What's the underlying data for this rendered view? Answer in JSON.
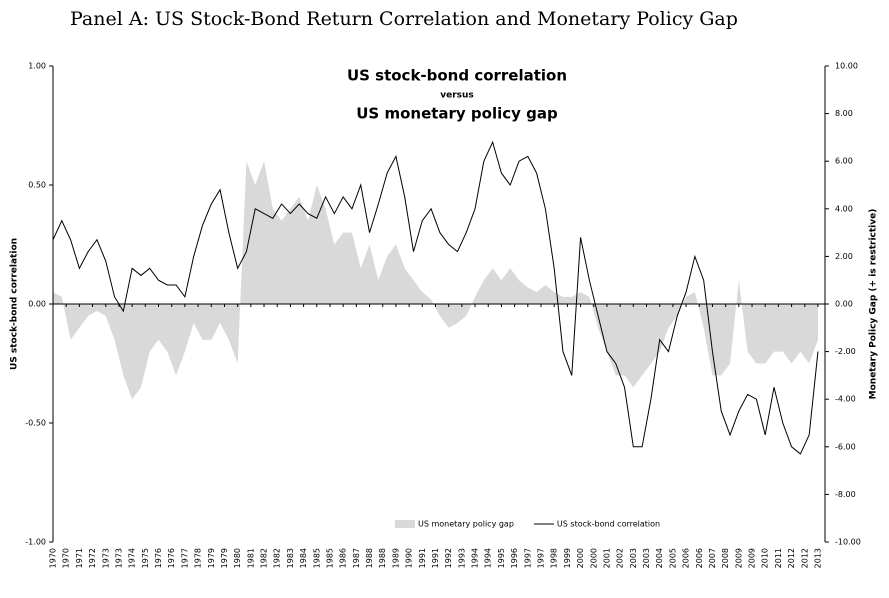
{
  "chart_data": {
    "type": "line",
    "title": "Panel A: US Stock-Bond Return Correlation and Monetary Policy Gap",
    "annotations": [
      "US stock-bond correlation",
      "versus",
      "US monetary policy gap"
    ],
    "y_label": "US stock-bond correlation",
    "y2_label": "Monetary Policy Gap (+ is restrictive)",
    "legend": "bottom",
    "xlim": [
      1970,
      2013.9
    ],
    "ylim": [
      -1,
      1
    ],
    "y2lim": [
      -10,
      10
    ],
    "yticks": [
      {
        "value": 1,
        "label": "1.00"
      },
      {
        "value": 0.5,
        "label": "0.50"
      },
      {
        "value": 0,
        "label": "0.00"
      },
      {
        "value": -0.5,
        "label": "-0.50"
      },
      {
        "value": -1,
        "label": "-1.00"
      }
    ],
    "y2ticks": [
      {
        "value": 10,
        "label": "10.00"
      },
      {
        "value": 8,
        "label": "8.00"
      },
      {
        "value": 6,
        "label": "6.00"
      },
      {
        "value": 4,
        "label": "4.00"
      },
      {
        "value": 2,
        "label": "2.00"
      },
      {
        "value": 0,
        "label": "0.00"
      },
      {
        "value": -2,
        "label": "-2.00"
      },
      {
        "value": -4,
        "label": "-4.00"
      },
      {
        "value": -6,
        "label": "-6.00"
      },
      {
        "value": -8,
        "label": "-8.00"
      },
      {
        "value": -10,
        "label": "-10.00"
      }
    ],
    "xticks": [
      {
        "value": 1970.0,
        "label": "1970"
      },
      {
        "value": 1970.75,
        "label": "1970"
      },
      {
        "value": 1971.5,
        "label": "1971"
      },
      {
        "value": 1972.25,
        "label": "1972"
      },
      {
        "value": 1973.0,
        "label": "1973"
      },
      {
        "value": 1973.75,
        "label": "1973"
      },
      {
        "value": 1974.5,
        "label": "1974"
      },
      {
        "value": 1975.25,
        "label": "1975"
      },
      {
        "value": 1976.0,
        "label": "1976"
      },
      {
        "value": 1976.75,
        "label": "1976"
      },
      {
        "value": 1977.5,
        "label": "1977"
      },
      {
        "value": 1978.25,
        "label": "1978"
      },
      {
        "value": 1979.0,
        "label": "1979"
      },
      {
        "value": 1979.75,
        "label": "1979"
      },
      {
        "value": 1980.5,
        "label": "1980"
      },
      {
        "value": 1981.25,
        "label": "1981"
      },
      {
        "value": 1982.0,
        "label": "1982"
      },
      {
        "value": 1982.75,
        "label": "1982"
      },
      {
        "value": 1983.5,
        "label": "1983"
      },
      {
        "value": 1984.25,
        "label": "1984"
      },
      {
        "value": 1985.0,
        "label": "1985"
      },
      {
        "value": 1985.75,
        "label": "1985"
      },
      {
        "value": 1986.5,
        "label": "1986"
      },
      {
        "value": 1987.25,
        "label": "1987"
      },
      {
        "value": 1988.0,
        "label": "1988"
      },
      {
        "value": 1988.75,
        "label": "1988"
      },
      {
        "value": 1989.5,
        "label": "1989"
      },
      {
        "value": 1990.25,
        "label": "1990"
      },
      {
        "value": 1991.0,
        "label": "1991"
      },
      {
        "value": 1991.75,
        "label": "1991"
      },
      {
        "value": 1992.5,
        "label": "1992"
      },
      {
        "value": 1993.25,
        "label": "1993"
      },
      {
        "value": 1994.0,
        "label": "1994"
      },
      {
        "value": 1994.75,
        "label": "1994"
      },
      {
        "value": 1995.5,
        "label": "1995"
      },
      {
        "value": 1996.25,
        "label": "1996"
      },
      {
        "value": 1997.0,
        "label": "1997"
      },
      {
        "value": 1997.75,
        "label": "1997"
      },
      {
        "value": 1998.5,
        "label": "1998"
      },
      {
        "value": 1999.25,
        "label": "1999"
      },
      {
        "value": 2000.0,
        "label": "2000"
      },
      {
        "value": 2000.75,
        "label": "2000"
      },
      {
        "value": 2001.5,
        "label": "2001"
      },
      {
        "value": 2002.25,
        "label": "2002"
      },
      {
        "value": 2003.0,
        "label": "2003"
      },
      {
        "value": 2003.75,
        "label": "2003"
      },
      {
        "value": 2004.5,
        "label": "2004"
      },
      {
        "value": 2005.25,
        "label": "2005"
      },
      {
        "value": 2006.0,
        "label": "2006"
      },
      {
        "value": 2006.75,
        "label": "2006"
      },
      {
        "value": 2007.5,
        "label": "2007"
      },
      {
        "value": 2008.25,
        "label": "2008"
      },
      {
        "value": 2009.0,
        "label": "2009"
      },
      {
        "value": 2009.75,
        "label": "2009"
      },
      {
        "value": 2010.5,
        "label": "2010"
      },
      {
        "value": 2011.25,
        "label": "2011"
      },
      {
        "value": 2012.0,
        "label": "2012"
      },
      {
        "value": 2012.75,
        "label": "2012"
      },
      {
        "value": 2013.5,
        "label": "2013"
      }
    ],
    "x": [
      1970.0,
      1970.5,
      1971.0,
      1971.5,
      1972.0,
      1972.5,
      1973.0,
      1973.5,
      1974.0,
      1974.5,
      1975.0,
      1975.5,
      1976.0,
      1976.5,
      1977.0,
      1977.5,
      1978.0,
      1978.5,
      1979.0,
      1979.5,
      1980.0,
      1980.5,
      1981.0,
      1981.5,
      1982.0,
      1982.5,
      1983.0,
      1983.5,
      1984.0,
      1984.5,
      1985.0,
      1985.5,
      1986.0,
      1986.5,
      1987.0,
      1987.5,
      1988.0,
      1988.5,
      1989.0,
      1989.5,
      1990.0,
      1990.5,
      1991.0,
      1991.5,
      1992.0,
      1992.5,
      1993.0,
      1993.5,
      1994.0,
      1994.5,
      1995.0,
      1995.5,
      1996.0,
      1996.5,
      1997.0,
      1997.5,
      1998.0,
      1998.5,
      1999.0,
      1999.5,
      2000.0,
      2000.5,
      2001.0,
      2001.5,
      2002.0,
      2002.5,
      2003.0,
      2003.5,
      2004.0,
      2004.5,
      2005.0,
      2005.5,
      2006.0,
      2006.5,
      2007.0,
      2007.5,
      2008.0,
      2008.5,
      2009.0,
      2009.5,
      2010.0,
      2010.5,
      2011.0,
      2011.5,
      2012.0,
      2012.5,
      2013.0,
      2013.5
    ],
    "series": [
      {
        "name": "US monetary policy gap",
        "type": "area",
        "axis": "y2",
        "color": "#d9d9d9",
        "values": [
          0.5,
          0.3,
          -1.5,
          -1.0,
          -0.5,
          -0.3,
          -0.5,
          -1.5,
          -3.0,
          -4.0,
          -3.5,
          -2.0,
          -1.5,
          -2.0,
          -3.0,
          -2.0,
          -0.8,
          -1.5,
          -1.5,
          -0.8,
          -1.5,
          -2.5,
          6.0,
          5.0,
          6.0,
          4.0,
          3.5,
          4.0,
          4.5,
          3.5,
          5.0,
          4.0,
          2.5,
          3.0,
          3.0,
          1.5,
          2.5,
          1.0,
          2.0,
          2.5,
          1.5,
          1.0,
          0.5,
          0.2,
          -0.5,
          -1.0,
          -0.8,
          -0.5,
          0.3,
          1.0,
          1.5,
          1.0,
          1.5,
          1.0,
          0.7,
          0.5,
          0.8,
          0.5,
          0.3,
          0.3,
          0.5,
          0.3,
          -1.0,
          -2.0,
          -3.0,
          -3.0,
          -3.5,
          -3.0,
          -2.5,
          -2.0,
          -1.0,
          -0.5,
          0.3,
          0.5,
          -1.0,
          -3.0,
          -3.0,
          -2.5,
          1.0,
          -2.0,
          -2.5,
          -2.5,
          -2.0,
          -2.0,
          -2.5,
          -2.0,
          -2.5,
          -1.5
        ]
      },
      {
        "name": "US stock-bond correlation",
        "type": "line",
        "color": "#000000",
        "values": [
          0.27,
          0.35,
          0.27,
          0.15,
          0.22,
          0.27,
          0.18,
          0.03,
          -0.03,
          0.15,
          0.12,
          0.15,
          0.1,
          0.08,
          0.08,
          0.03,
          0.2,
          0.33,
          0.42,
          0.48,
          0.3,
          0.15,
          0.22,
          0.4,
          0.38,
          0.36,
          0.42,
          0.38,
          0.42,
          0.38,
          0.36,
          0.45,
          0.38,
          0.45,
          0.4,
          0.5,
          0.3,
          0.42,
          0.55,
          0.62,
          0.45,
          0.22,
          0.35,
          0.4,
          0.3,
          0.25,
          0.22,
          0.3,
          0.4,
          0.6,
          0.68,
          0.55,
          0.5,
          0.6,
          0.62,
          0.55,
          0.4,
          0.15,
          -0.2,
          -0.3,
          0.28,
          0.1,
          -0.05,
          -0.2,
          -0.25,
          -0.35,
          -0.6,
          -0.6,
          -0.4,
          -0.15,
          -0.2,
          -0.05,
          0.05,
          0.2,
          0.1,
          -0.2,
          -0.45,
          -0.55,
          -0.45,
          -0.38,
          -0.4,
          -0.55,
          -0.35,
          -0.5,
          -0.6,
          -0.63,
          -0.55,
          -0.2
        ]
      }
    ]
  }
}
